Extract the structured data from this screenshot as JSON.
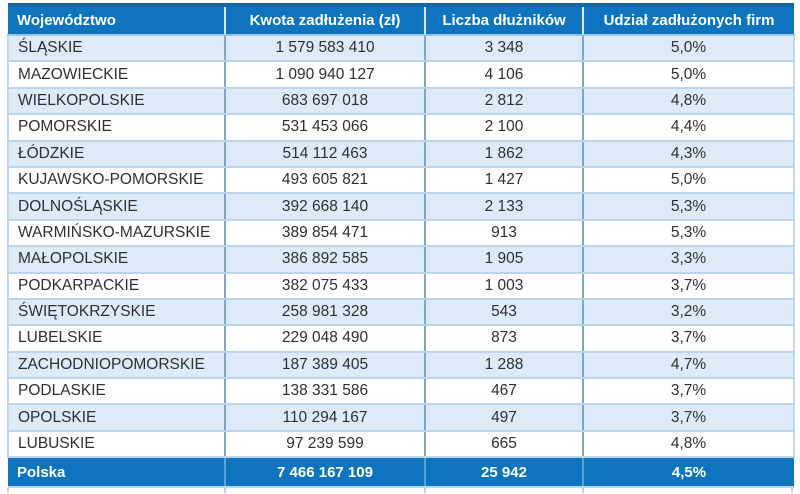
{
  "table": {
    "columns": [
      {
        "id": "wojewodztwo",
        "label": "Województwo",
        "align": "left"
      },
      {
        "id": "kwota",
        "label": "Kwota zadłużenia (zł)",
        "align": "center"
      },
      {
        "id": "liczba",
        "label": "Liczba dłużników",
        "align": "center"
      },
      {
        "id": "udzial",
        "label": "Udział zadłużonych firm",
        "align": "center"
      }
    ],
    "rows": [
      [
        "ŚLĄSKIE",
        "1 579 583 410",
        "3 348",
        "5,0%"
      ],
      [
        "MAZOWIECKIE",
        "1 090 940 127",
        "4 106",
        "5,0%"
      ],
      [
        "WIELKOPOLSKIE",
        "683 697 018",
        "2 812",
        "4,8%"
      ],
      [
        "POMORSKIE",
        "531 453 066",
        "2 100",
        "4,4%"
      ],
      [
        "ŁÓDZKIE",
        "514 112 463",
        "1 862",
        "4,3%"
      ],
      [
        "KUJAWSKO-POMORSKIE",
        "493 605 821",
        "1 427",
        "5,0%"
      ],
      [
        "DOLNOŚLĄSKIE",
        "392 668 140",
        "2 133",
        "5,3%"
      ],
      [
        "WARMIŃSKO-MAZURSKIE",
        "389 854 471",
        "913",
        "5,3%"
      ],
      [
        "MAŁOPOLSKIE",
        "386 892 585",
        "1 905",
        "3,3%"
      ],
      [
        "PODKARPACKIE",
        "382 075 433",
        "1 003",
        "3,7%"
      ],
      [
        "ŚWIĘTOKRZYSKIE",
        "258 981 328",
        "543",
        "3,2%"
      ],
      [
        "LUBELSKIE",
        "229 048 490",
        "873",
        "3,7%"
      ],
      [
        "ZACHODNIOPOMORSKIE",
        "187 389 405",
        "1 288",
        "4,7%"
      ],
      [
        "PODLASKIE",
        "138 331 586",
        "467",
        "3,7%"
      ],
      [
        "OPOLSKIE",
        "110 294 167",
        "497",
        "3,7%"
      ],
      [
        "LUBUSKIE",
        "97 239 599",
        "665",
        "4,8%"
      ]
    ],
    "total_row": [
      "Polska",
      "7 466 167 109",
      "25 942",
      "4,5%"
    ]
  },
  "chart_data": {
    "type": "table",
    "title": "",
    "columns": [
      "Województwo",
      "Kwota zadłużenia (zł)",
      "Liczba dłużników",
      "Udział zadłużonych firm"
    ],
    "records": [
      {
        "wojewodztwo": "ŚLĄSKIE",
        "kwota_zadluzenia_zl": 1579583410,
        "liczba_dluznikow": 3348,
        "udzial_zadluzonych_firm_pct": 5.0
      },
      {
        "wojewodztwo": "MAZOWIECKIE",
        "kwota_zadluzenia_zl": 1090940127,
        "liczba_dluznikow": 4106,
        "udzial_zadluzonych_firm_pct": 5.0
      },
      {
        "wojewodztwo": "WIELKOPOLSKIE",
        "kwota_zadluzenia_zl": 683697018,
        "liczba_dluznikow": 2812,
        "udzial_zadluzonych_firm_pct": 4.8
      },
      {
        "wojewodztwo": "POMORSKIE",
        "kwota_zadluzenia_zl": 531453066,
        "liczba_dluznikow": 2100,
        "udzial_zadluzonych_firm_pct": 4.4
      },
      {
        "wojewodztwo": "ŁÓDZKIE",
        "kwota_zadluzenia_zl": 514112463,
        "liczba_dluznikow": 1862,
        "udzial_zadluzonych_firm_pct": 4.3
      },
      {
        "wojewodztwo": "KUJAWSKO-POMORSKIE",
        "kwota_zadluzenia_zl": 493605821,
        "liczba_dluznikow": 1427,
        "udzial_zadluzonych_firm_pct": 5.0
      },
      {
        "wojewodztwo": "DOLNOŚLĄSKIE",
        "kwota_zadluzenia_zl": 392668140,
        "liczba_dluznikow": 2133,
        "udzial_zadluzonych_firm_pct": 5.3
      },
      {
        "wojewodztwo": "WARMIŃSKO-MAZURSKIE",
        "kwota_zadluzenia_zl": 389854471,
        "liczba_dluznikow": 913,
        "udzial_zadluzonych_firm_pct": 5.3
      },
      {
        "wojewodztwo": "MAŁOPOLSKIE",
        "kwota_zadluzenia_zl": 386892585,
        "liczba_dluznikow": 1905,
        "udzial_zadluzonych_firm_pct": 3.3
      },
      {
        "wojewodztwo": "PODKARPACKIE",
        "kwota_zadluzenia_zl": 382075433,
        "liczba_dluznikow": 1003,
        "udzial_zadluzonych_firm_pct": 3.7
      },
      {
        "wojewodztwo": "ŚWIĘTOKRZYSKIE",
        "kwota_zadluzenia_zl": 258981328,
        "liczba_dluznikow": 543,
        "udzial_zadluzonych_firm_pct": 3.2
      },
      {
        "wojewodztwo": "LUBELSKIE",
        "kwota_zadluzenia_zl": 229048490,
        "liczba_dluznikow": 873,
        "udzial_zadluzonych_firm_pct": 3.7
      },
      {
        "wojewodztwo": "ZACHODNIOPOMORSKIE",
        "kwota_zadluzenia_zl": 187389405,
        "liczba_dluznikow": 1288,
        "udzial_zadluzonych_firm_pct": 4.7
      },
      {
        "wojewodztwo": "PODLASKIE",
        "kwota_zadluzenia_zl": 138331586,
        "liczba_dluznikow": 467,
        "udzial_zadluzonych_firm_pct": 3.7
      },
      {
        "wojewodztwo": "OPOLSKIE",
        "kwota_zadluzenia_zl": 110294167,
        "liczba_dluznikow": 497,
        "udzial_zadluzonych_firm_pct": 3.7
      },
      {
        "wojewodztwo": "LUBUSKIE",
        "kwota_zadluzenia_zl": 97239599,
        "liczba_dluznikow": 665,
        "udzial_zadluzonych_firm_pct": 4.8
      }
    ],
    "total": {
      "wojewodztwo": "Polska",
      "kwota_zadluzenia_zl": 7466167109,
      "liczba_dluznikow": 25942,
      "udzial_zadluzonych_firm_pct": 4.5
    },
    "layout": {
      "striped_rows": true,
      "header_position": "top",
      "total_row_position": "bottom"
    }
  },
  "colors": {
    "header_bg": "#0e74c0",
    "header_top_border": "#1565ab",
    "header_text": "#ffffff",
    "stripe_bg": "#dcebf7",
    "row_border": "#bdd4ea",
    "column_border": "#7aa6cf",
    "body_text": "#303030",
    "total_bg": "#0e74c0",
    "total_text": "#ffffff"
  }
}
